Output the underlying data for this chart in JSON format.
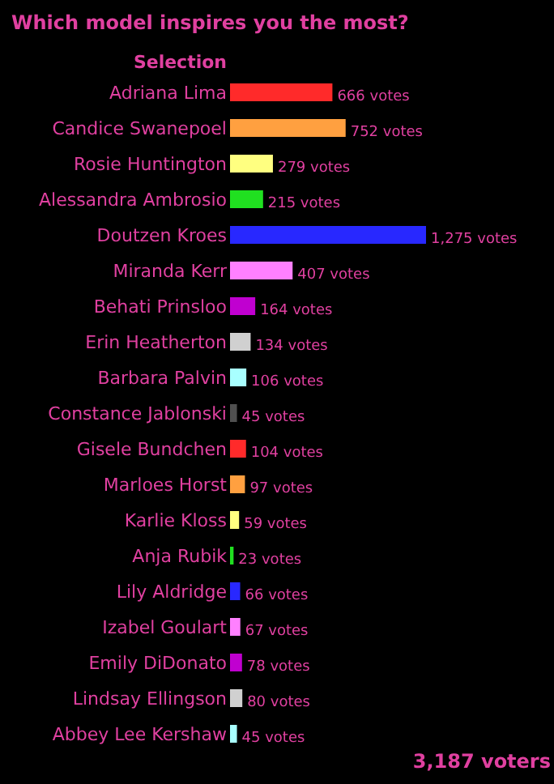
{
  "chart_data": {
    "type": "bar",
    "orientation": "horizontal",
    "title": "Which model inspires you the most?",
    "ylabel": "Selection",
    "categories": [
      "Adriana Lima",
      "Candice Swanepoel",
      "Rosie Huntington",
      "Alessandra Ambrosio",
      "Doutzen Kroes",
      "Miranda Kerr",
      "Behati Prinsloo",
      "Erin Heatherton",
      "Barbara Palvin",
      "Constance Jablonski",
      "Gisele Bundchen",
      "Marloes Horst",
      "Karlie Kloss",
      "Anja Rubik",
      "Lily Aldridge",
      "Izabel Goulart",
      "Emily DiDonato",
      "Lindsay Ellingson",
      "Abbey Lee Kershaw"
    ],
    "values": [
      666,
      752,
      279,
      215,
      1275,
      407,
      164,
      134,
      106,
      45,
      104,
      97,
      59,
      23,
      66,
      67,
      78,
      80,
      45
    ],
    "value_labels": [
      "666 votes",
      "752 votes",
      "279 votes",
      "215 votes",
      "1,275 votes",
      "407 votes",
      "164 votes",
      "134 votes",
      "106 votes",
      "45 votes",
      "104 votes",
      "97 votes",
      "59 votes",
      "23 votes",
      "66 votes",
      "67 votes",
      "78 votes",
      "80 votes",
      "45 votes"
    ],
    "colors": [
      "#ff2a2a",
      "#ffa040",
      "#ffff80",
      "#20e020",
      "#2828ff",
      "#ff80ff",
      "#c000d0",
      "#d0d0d0",
      "#a8ffff",
      "#505050",
      "#ff2a2a",
      "#ffa040",
      "#ffff80",
      "#20e020",
      "#2828ff",
      "#ff80ff",
      "#c000d0",
      "#d0d0d0",
      "#a8ffff"
    ],
    "annotations": [
      "3,187 voters"
    ]
  }
}
